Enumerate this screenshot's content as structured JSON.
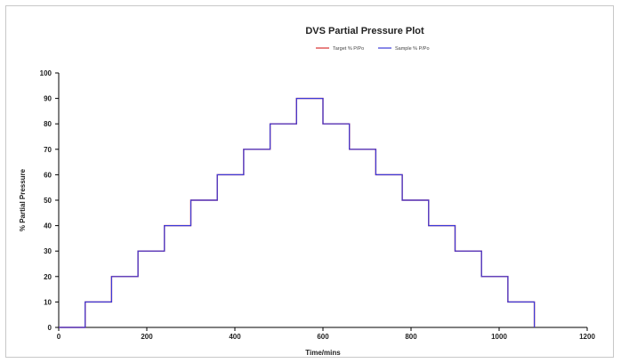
{
  "chart_data": {
    "type": "line",
    "title": "DVS Partial Pressure Plot",
    "xlabel": "Time/mins",
    "ylabel": "% Partial Pressure",
    "xlim": [
      0,
      1200
    ],
    "ylim": [
      0,
      100
    ],
    "xticks": [
      0,
      200,
      400,
      600,
      800,
      1000,
      1200
    ],
    "yticks": [
      0,
      10,
      20,
      30,
      40,
      50,
      60,
      70,
      80,
      90,
      100
    ],
    "legend_position": "top-right",
    "grid": false,
    "series": [
      {
        "name": "Target % P/Po",
        "color": "#d93030",
        "step": true,
        "x": [
          0,
          60,
          120,
          180,
          240,
          300,
          360,
          420,
          480,
          540,
          600,
          660,
          720,
          780,
          840,
          900,
          960,
          1020,
          1080
        ],
        "y": [
          0,
          10,
          20,
          30,
          40,
          50,
          60,
          70,
          80,
          90,
          80,
          70,
          60,
          50,
          40,
          30,
          20,
          10,
          0
        ]
      },
      {
        "name": "Sample % P/Po",
        "color": "#3a3ad9",
        "step": true,
        "x": [
          0,
          60,
          120,
          180,
          240,
          300,
          360,
          420,
          480,
          540,
          600,
          660,
          720,
          780,
          840,
          900,
          960,
          1020,
          1080
        ],
        "y": [
          0,
          10,
          20,
          30,
          40,
          50,
          60,
          70,
          80,
          90,
          80,
          70,
          60,
          50,
          40,
          30,
          20,
          10,
          0
        ]
      }
    ]
  }
}
